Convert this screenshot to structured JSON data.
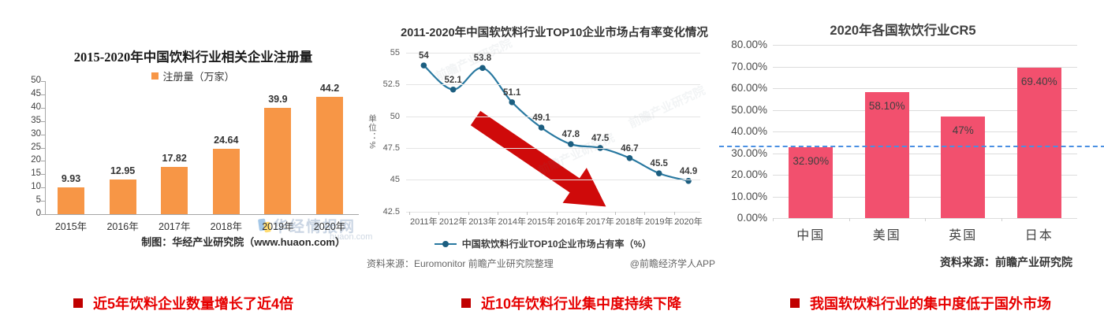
{
  "captions": [
    {
      "label": "近5年饮料企业数量增长了近4倍"
    },
    {
      "label": "近10年饮料行业集中度持续下降"
    },
    {
      "label": "我国软饮料行业的集中度低于国外市场"
    }
  ],
  "colors": {
    "caption_text": "#E60000",
    "caption_bullet": "#C00000",
    "left_bar": "#F79646",
    "middle_line": "#2878A0",
    "middle_marker": "#1C5E80",
    "arrow": "#CF0A0A",
    "right_bar": "#F2506E",
    "reference_dashed": "#4A90E2"
  },
  "chart_data": [
    {
      "type": "bar",
      "title": "2015-2020年中国饮料行业相关企业注册量",
      "legend": "注册量（万家）",
      "categories": [
        "2015年",
        "2016年",
        "2017年",
        "2018年",
        "2019年",
        "2020年"
      ],
      "values": [
        9.93,
        12.95,
        17.82,
        24.64,
        39.9,
        44.2
      ],
      "ylim": [
        0,
        50
      ],
      "ytick_step": 5,
      "grid": false,
      "bar_color": "#F79646",
      "source": "制图：华经产业研究院（www.huaon.com）",
      "watermark": "华经情报网",
      "watermark_domain": "huaon.com"
    },
    {
      "type": "line",
      "title": "2011-2020年中国软饮料行业TOP10企业市场占有率变化情况",
      "ylabel": "单位：%",
      "categories": [
        "2011年",
        "2012年",
        "2013年",
        "2014年",
        "2015年",
        "2016年",
        "2017年",
        "2018年",
        "2019年",
        "2020年"
      ],
      "values": [
        54,
        52.1,
        53.8,
        51.1,
        49.1,
        47.8,
        47.5,
        46.7,
        45.5,
        44.9
      ],
      "ylim": [
        42.5,
        55
      ],
      "yticks": [
        55,
        52.5,
        50,
        47.5,
        45,
        42.5
      ],
      "grid": true,
      "legend": "中国软饮料行业TOP10企业市场占有率（%）",
      "line_color": "#2878A0",
      "marker_color": "#1C5E80",
      "annotation": "down-trend-arrow",
      "arrow_color": "#CF0A0A",
      "source_left": "资料来源：Euromonitor 前瞻产业研究院整理",
      "source_right": "@前瞻经济学人APP",
      "watermark": "前瞻产业研究院"
    },
    {
      "type": "bar",
      "title": "2020年各国软饮行业CR5",
      "categories": [
        "中国",
        "美国",
        "英国",
        "日本"
      ],
      "values": [
        32.9,
        58.1,
        47,
        69.4
      ],
      "value_labels": [
        "32.90%",
        "58.10%",
        "47%",
        "69.40%"
      ],
      "ylim": [
        0,
        80
      ],
      "ytick_labels": [
        "80.00%",
        "70.00%",
        "60.00%",
        "50.00%",
        "40.00%",
        "30.00%",
        "20.00%",
        "10.00%",
        "0.00%"
      ],
      "grid": true,
      "bar_color": "#F2506E",
      "reference_line": {
        "value": 33,
        "style": "dashed",
        "color": "#4A90E2"
      },
      "source": "资料来源：前瞻产业研究院"
    }
  ]
}
